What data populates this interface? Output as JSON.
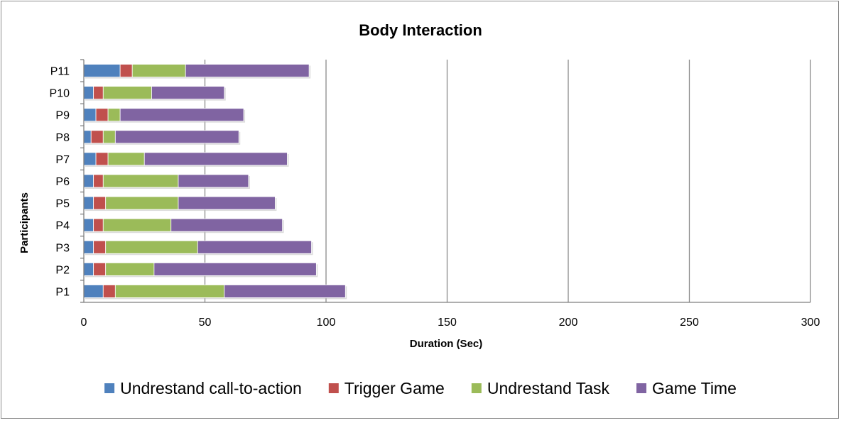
{
  "chart_data": {
    "type": "bar",
    "orientation": "horizontal",
    "stacked": true,
    "title": "Body Interaction",
    "xlabel": "Duration (Sec)",
    "ylabel": "Participants",
    "xlim": [
      0,
      300
    ],
    "xticks": [
      0,
      50,
      100,
      150,
      200,
      250,
      300
    ],
    "grid": "vertical",
    "legend_position": "bottom",
    "categories": [
      "P1",
      "P2",
      "P3",
      "P4",
      "P5",
      "P6",
      "P7",
      "P8",
      "P9",
      "P10",
      "P11"
    ],
    "series": [
      {
        "name": "Undrestand call-to-action",
        "color": "#4f81bd",
        "values": [
          8,
          4,
          4,
          4,
          4,
          4,
          5,
          3,
          5,
          4,
          15
        ]
      },
      {
        "name": "Trigger Game",
        "color": "#c0504d",
        "values": [
          5,
          5,
          5,
          4,
          5,
          4,
          5,
          5,
          5,
          4,
          5
        ]
      },
      {
        "name": "Undrestand Task",
        "color": "#9bbb59",
        "values": [
          45,
          20,
          38,
          28,
          30,
          31,
          15,
          5,
          5,
          20,
          22
        ]
      },
      {
        "name": "Game Time",
        "color": "#8064a2",
        "values": [
          50,
          67,
          47,
          46,
          40,
          29,
          59,
          51,
          51,
          30,
          51
        ]
      }
    ]
  }
}
